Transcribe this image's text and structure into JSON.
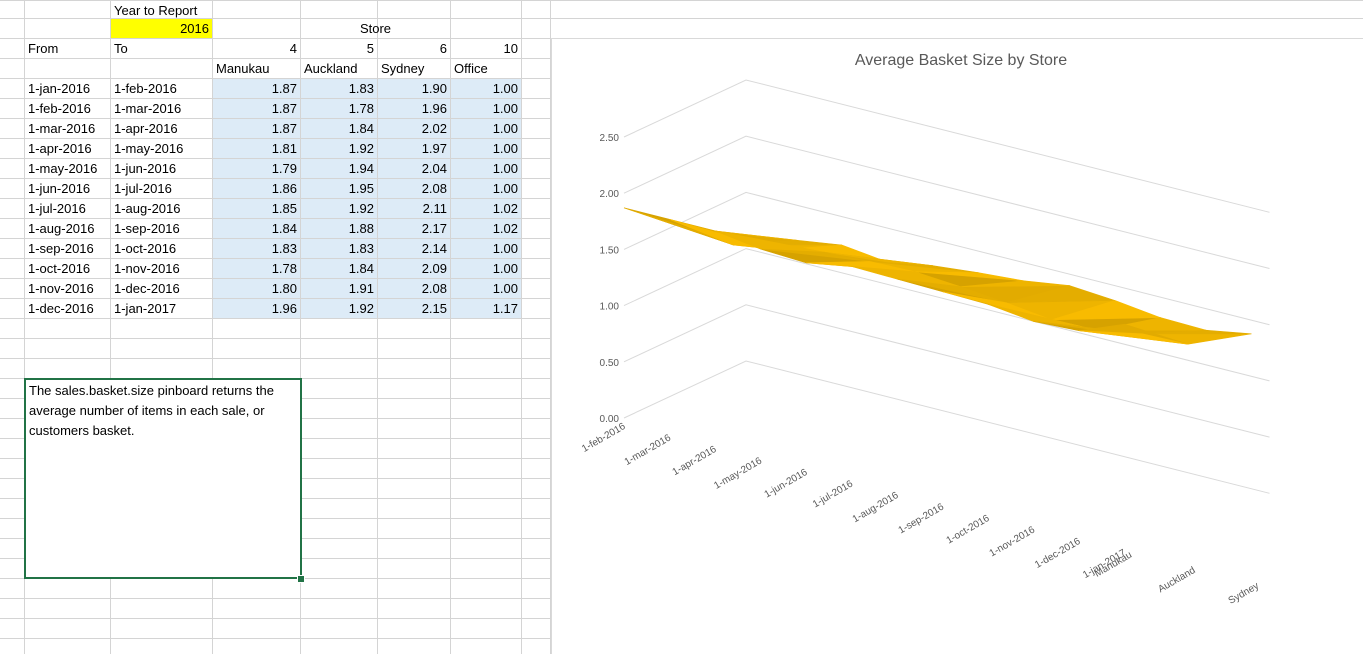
{
  "sheet": {
    "year_label": "Year to Report",
    "year_value": "2016",
    "store_label": "Store",
    "from_label": "From",
    "to_label": "To",
    "store_ids": [
      "4",
      "5",
      "6",
      "10"
    ],
    "store_names": [
      "Manukau",
      "Auckland",
      "Sydney",
      "Office"
    ],
    "rows": [
      {
        "from": "1-jan-2016",
        "to": "1-feb-2016",
        "vals": [
          "1.87",
          "1.83",
          "1.90",
          "1.00"
        ]
      },
      {
        "from": "1-feb-2016",
        "to": "1-mar-2016",
        "vals": [
          "1.87",
          "1.78",
          "1.96",
          "1.00"
        ]
      },
      {
        "from": "1-mar-2016",
        "to": "1-apr-2016",
        "vals": [
          "1.87",
          "1.84",
          "2.02",
          "1.00"
        ]
      },
      {
        "from": "1-apr-2016",
        "to": "1-may-2016",
        "vals": [
          "1.81",
          "1.92",
          "1.97",
          "1.00"
        ]
      },
      {
        "from": "1-may-2016",
        "to": "1-jun-2016",
        "vals": [
          "1.79",
          "1.94",
          "2.04",
          "1.00"
        ]
      },
      {
        "from": "1-jun-2016",
        "to": "1-jul-2016",
        "vals": [
          "1.86",
          "1.95",
          "2.08",
          "1.00"
        ]
      },
      {
        "from": "1-jul-2016",
        "to": "1-aug-2016",
        "vals": [
          "1.85",
          "1.92",
          "2.11",
          "1.02"
        ]
      },
      {
        "from": "1-aug-2016",
        "to": "1-sep-2016",
        "vals": [
          "1.84",
          "1.88",
          "2.17",
          "1.02"
        ]
      },
      {
        "from": "1-sep-2016",
        "to": "1-oct-2016",
        "vals": [
          "1.83",
          "1.83",
          "2.14",
          "1.00"
        ]
      },
      {
        "from": "1-oct-2016",
        "to": "1-nov-2016",
        "vals": [
          "1.78",
          "1.84",
          "2.09",
          "1.00"
        ]
      },
      {
        "from": "1-nov-2016",
        "to": "1-dec-2016",
        "vals": [
          "1.80",
          "1.91",
          "2.08",
          "1.00"
        ]
      },
      {
        "from": "1-dec-2016",
        "to": "1-jan-2017",
        "vals": [
          "1.96",
          "1.92",
          "2.15",
          "1.17"
        ]
      }
    ],
    "note_text": "The sales.basket.size pinboard returns the average number of items in each sale, or customers basket."
  },
  "chart_data": {
    "type": "surface",
    "title": "Average Basket Size by Store",
    "x": [
      "1-feb-2016",
      "1-mar-2016",
      "1-apr-2016",
      "1-may-2016",
      "1-jun-2016",
      "1-jul-2016",
      "1-aug-2016",
      "1-sep-2016",
      "1-oct-2016",
      "1-nov-2016",
      "1-dec-2016",
      "1-jan-2017"
    ],
    "y_tick_labels": [
      "0.00",
      "0.50",
      "1.00",
      "1.50",
      "2.00",
      "2.50"
    ],
    "ylim": [
      0,
      2.5
    ],
    "series": [
      {
        "name": "Manukau",
        "values": [
          1.87,
          1.87,
          1.87,
          1.81,
          1.79,
          1.86,
          1.85,
          1.84,
          1.83,
          1.78,
          1.8,
          1.96
        ]
      },
      {
        "name": "Auckland",
        "values": [
          1.83,
          1.78,
          1.84,
          1.92,
          1.94,
          1.95,
          1.92,
          1.88,
          1.83,
          1.84,
          1.91,
          1.92
        ]
      },
      {
        "name": "Sydney",
        "values": [
          1.9,
          1.96,
          2.02,
          1.97,
          2.04,
          2.08,
          2.11,
          2.17,
          2.14,
          2.09,
          2.08,
          2.15
        ]
      }
    ],
    "depth_labels": [
      "Manukau",
      "Auckland",
      "Sydney"
    ],
    "legend": "none",
    "colors": {
      "band_1_1_5": "#4e81bd",
      "band_1_5_2": "#eeb400"
    }
  }
}
